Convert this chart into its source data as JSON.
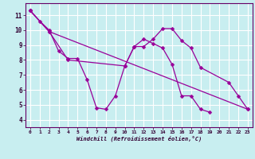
{
  "xlabel": "Windchill (Refroidissement éolien,°C)",
  "bg_color": "#c8eef0",
  "grid_color": "#ffffff",
  "line_color": "#990099",
  "xlim": [
    -0.5,
    23.5
  ],
  "ylim": [
    3.5,
    11.8
  ],
  "xticks": [
    0,
    1,
    2,
    3,
    4,
    5,
    6,
    7,
    8,
    9,
    10,
    11,
    12,
    13,
    14,
    15,
    16,
    17,
    18,
    19,
    20,
    21,
    22,
    23
  ],
  "yticks": [
    4,
    5,
    6,
    7,
    8,
    9,
    10,
    11
  ],
  "line1_x": [
    0,
    1,
    2,
    3,
    4,
    5,
    6,
    7,
    8,
    9,
    10,
    11,
    12,
    13,
    14,
    15,
    16,
    17,
    18,
    19
  ],
  "line1_y": [
    11.3,
    10.6,
    10.0,
    8.6,
    8.1,
    8.1,
    6.7,
    4.8,
    4.7,
    5.6,
    7.6,
    8.9,
    9.4,
    9.1,
    8.8,
    7.7,
    5.6,
    5.6,
    4.7,
    4.5
  ],
  "line2_x": [
    0,
    2,
    23
  ],
  "line2_y": [
    11.3,
    9.9,
    4.7
  ],
  "line3_x": [
    0,
    2,
    4,
    10,
    11,
    12,
    13,
    14,
    15,
    16,
    17,
    18,
    21,
    22,
    23
  ],
  "line3_y": [
    11.3,
    9.9,
    8.0,
    7.6,
    8.9,
    8.9,
    9.4,
    10.1,
    10.1,
    9.3,
    8.8,
    7.5,
    6.5,
    5.6,
    4.7
  ],
  "marker_size": 2.5,
  "linewidth": 0.9
}
